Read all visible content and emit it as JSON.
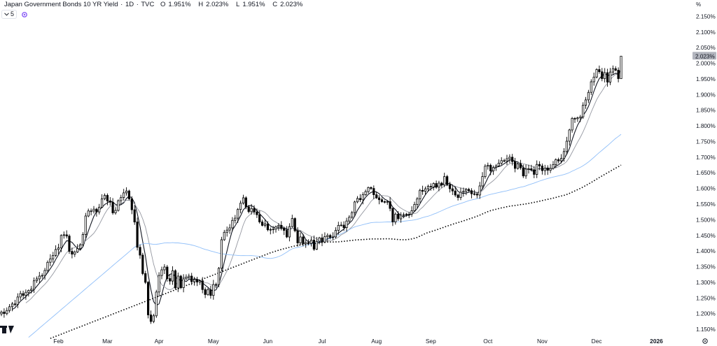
{
  "header": {
    "symbol_title": "Japan Government Bonds 10 YR Yield",
    "interval": "1D",
    "source": "TVC",
    "ohlc": {
      "o_label": "O",
      "o_value": "1.951%",
      "h_label": "H",
      "h_value": "2.023%",
      "l_label": "L",
      "l_value": "1.951%",
      "c_label": "C",
      "c_value": "2.023%"
    },
    "interval_button": "5"
  },
  "price_axis": {
    "unit_label": "%",
    "last_price_label": "2.023%"
  },
  "time_axis": {
    "settings_icon": "gear-icon"
  },
  "colors": {
    "up_candle": "#ffffff",
    "down_candle": "#000000",
    "ma_fast": "#131722",
    "ma_mid": "#9598a1",
    "ma_slow": "#90bff9",
    "ma_long": "#000000",
    "last_price_bg": "#b2b5be"
  },
  "chart_data": {
    "type": "candlestick",
    "y_unit": "%",
    "ylim": [
      1.13,
      2.18
    ],
    "y_ticks": [
      "2.150%",
      "2.100%",
      "2.050%",
      "2.000%",
      "1.950%",
      "1.900%",
      "1.850%",
      "1.800%",
      "1.750%",
      "1.700%",
      "1.650%",
      "1.600%",
      "1.550%",
      "1.500%",
      "1.450%",
      "1.400%",
      "1.350%",
      "1.300%",
      "1.250%",
      "1.200%",
      "1.150%"
    ],
    "x_ticks": [
      "Feb",
      "Mar",
      "Apr",
      "May",
      "Jun",
      "Jul",
      "Aug",
      "Sep",
      "Oct",
      "Nov",
      "Dec",
      "2026"
    ],
    "x_tick_day": [
      21,
      39,
      58,
      78,
      98,
      118,
      138,
      158,
      179,
      199,
      219,
      241
    ],
    "last_day": 228,
    "closes": [
      1.205,
      1.2,
      1.21,
      1.222,
      1.231,
      1.229,
      1.253,
      1.264,
      1.258,
      1.268,
      1.274,
      1.278,
      1.305,
      1.311,
      1.32,
      1.322,
      1.338,
      1.364,
      1.375,
      1.386,
      1.405,
      1.41,
      1.45,
      1.452,
      1.448,
      1.399,
      1.39,
      1.397,
      1.408,
      1.42,
      1.453,
      1.512,
      1.528,
      1.528,
      1.534,
      1.525,
      1.54,
      1.567,
      1.578,
      1.56,
      1.556,
      1.522,
      1.53,
      1.561,
      1.571,
      1.586,
      1.592,
      1.567,
      1.532,
      1.493,
      1.412,
      1.387,
      1.328,
      1.3,
      1.196,
      1.175,
      1.193,
      1.269,
      1.322,
      1.34,
      1.349,
      1.312,
      1.304,
      1.337,
      1.282,
      1.32,
      1.283,
      1.311,
      1.316,
      1.32,
      1.302,
      1.309,
      1.301,
      1.305,
      1.277,
      1.261,
      1.276,
      1.258,
      1.293,
      1.293,
      1.345,
      1.436,
      1.46,
      1.467,
      1.474,
      1.498,
      1.505,
      1.533,
      1.553,
      1.57,
      1.541,
      1.526,
      1.536,
      1.525,
      1.516,
      1.493,
      1.482,
      1.487,
      1.468,
      1.469,
      1.47,
      1.478,
      1.482,
      1.472,
      1.466,
      1.445,
      1.478,
      1.504,
      1.465,
      1.426,
      1.445,
      1.423,
      1.427,
      1.424,
      1.435,
      1.406,
      1.431,
      1.442,
      1.429,
      1.446,
      1.45,
      1.444,
      1.445,
      1.466,
      1.482,
      1.483,
      1.475,
      1.496,
      1.508,
      1.523,
      1.557,
      1.568,
      1.564,
      1.58,
      1.59,
      1.603,
      1.6,
      1.58,
      1.57,
      1.564,
      1.558,
      1.557,
      1.558,
      1.536,
      1.493,
      1.518,
      1.503,
      1.515,
      1.516,
      1.518,
      1.518,
      1.529,
      1.549,
      1.567,
      1.594,
      1.591,
      1.599,
      1.607,
      1.605,
      1.616,
      1.604,
      1.617,
      1.611,
      1.638,
      1.612,
      1.599,
      1.592,
      1.579,
      1.571,
      1.588,
      1.591,
      1.597,
      1.593,
      1.583,
      1.582,
      1.579,
      1.608,
      1.638,
      1.671,
      1.674,
      1.656,
      1.667,
      1.672,
      1.681,
      1.689,
      1.688,
      1.695,
      1.7,
      1.686,
      1.664,
      1.679,
      1.666,
      1.64,
      1.662,
      1.663,
      1.66,
      1.645,
      1.677,
      1.672,
      1.657,
      1.665,
      1.658,
      1.664,
      1.676,
      1.692,
      1.688,
      1.696,
      1.718,
      1.751,
      1.787,
      1.824,
      1.823,
      1.826,
      1.829,
      1.866,
      1.883,
      1.907,
      1.941,
      1.956,
      1.98,
      1.973,
      1.951,
      1.97,
      1.94,
      1.972,
      1.983,
      1.978,
      1.951,
      2.023
    ],
    "series": [
      {
        "name": "",
        "type": "sma",
        "period": 5,
        "style": "solid"
      },
      {
        "name": "",
        "type": "sma",
        "period": 10,
        "style": "solid"
      },
      {
        "name": "",
        "type": "sma",
        "period": 50,
        "style": "solid"
      },
      {
        "name": "",
        "type": "sma",
        "period": 100,
        "style": "dotted"
      }
    ],
    "grid": false,
    "legend": "top-left"
  }
}
